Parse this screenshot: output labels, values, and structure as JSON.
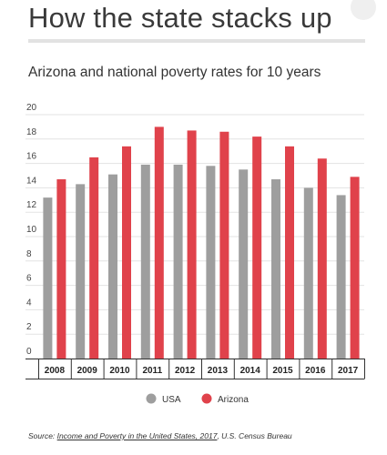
{
  "header": {
    "headline": "How the state stacks up"
  },
  "chart_data": {
    "type": "bar",
    "title": "Arizona and national poverty rates for 10 years",
    "xlabel": "",
    "ylabel": "",
    "ylim": [
      0,
      20
    ],
    "yticks": [
      0,
      2,
      4,
      6,
      8,
      10,
      12,
      14,
      16,
      18,
      20
    ],
    "categories": [
      "2008",
      "2009",
      "2010",
      "2011",
      "2012",
      "2013",
      "2014",
      "2015",
      "2016",
      "2017"
    ],
    "series": [
      {
        "name": "USA",
        "color": "#9e9e9e",
        "values": [
          13.2,
          14.3,
          15.1,
          15.9,
          15.9,
          15.8,
          15.5,
          14.7,
          14.0,
          13.4
        ]
      },
      {
        "name": "Arizona",
        "color": "#e0424b",
        "values": [
          14.7,
          16.5,
          17.4,
          19.0,
          18.7,
          18.6,
          18.2,
          17.4,
          16.4,
          14.9
        ]
      }
    ],
    "grid": true,
    "legend_position": "bottom"
  },
  "source": {
    "prefix": "Source: ",
    "link_text": "Income and Poverty in the United States, 2017",
    "suffix": ", U.S. Census Bureau"
  }
}
